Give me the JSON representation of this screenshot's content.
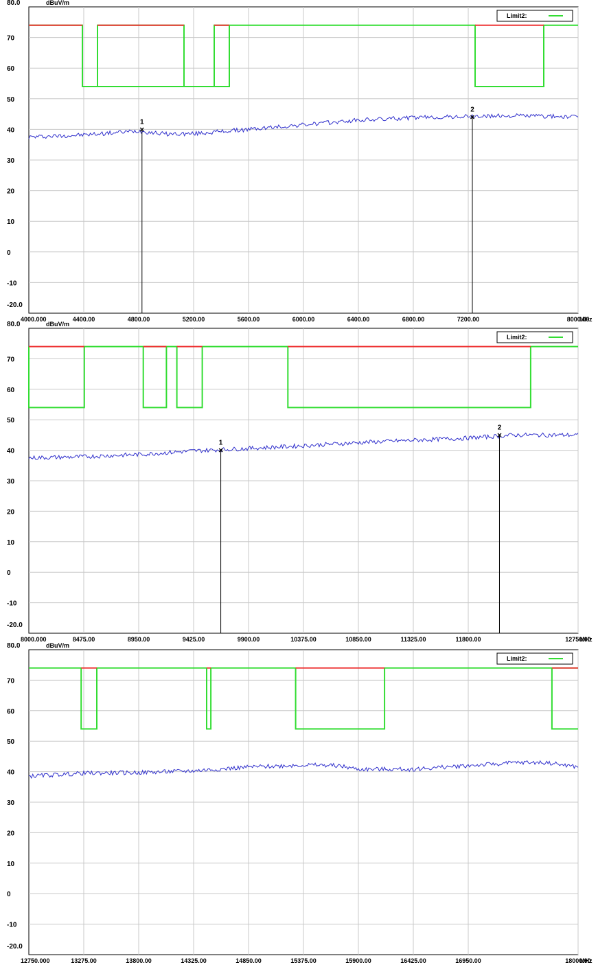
{
  "chart_data": [
    {
      "type": "line",
      "y_unit_label": "dBuV/m",
      "y_unit_key": "MHz",
      "ylim": [
        -20,
        80
      ],
      "xlim": [
        4000,
        8000
      ],
      "y_ticks": [
        "80.0",
        "70",
        "60",
        "50",
        "40",
        "30",
        "20",
        "10",
        "0",
        "-10",
        "-20.0"
      ],
      "x_ticks": [
        {
          "v": 4000,
          "label": "4000.000"
        },
        {
          "v": 4400,
          "label": "4400.00"
        },
        {
          "v": 4800,
          "label": "4800.00"
        },
        {
          "v": 5200,
          "label": "5200.00"
        },
        {
          "v": 5600,
          "label": "5600.00"
        },
        {
          "v": 6000,
          "label": "6000.00"
        },
        {
          "v": 6400,
          "label": "6400.00"
        },
        {
          "v": 6800,
          "label": "6800.00"
        },
        {
          "v": 7200,
          "label": "7200.00"
        },
        {
          "v": 8000,
          "label": "8000.00"
        }
      ],
      "x_unit": "MHz",
      "grid": true,
      "legend": {
        "label": "Limit2:",
        "position": "top-right"
      },
      "limit_line": {
        "color": "#33dd33",
        "red_color": "#ee3333",
        "points": [
          [
            4000,
            74
          ],
          [
            4390,
            74
          ],
          [
            4390,
            54
          ],
          [
            4500,
            54
          ],
          [
            4500,
            74
          ],
          [
            5130,
            74
          ],
          [
            5130,
            54
          ],
          [
            4500,
            54
          ],
          [
            5350,
            54
          ],
          [
            5350,
            74
          ],
          [
            5460,
            74
          ],
          [
            5460,
            54
          ],
          [
            5350,
            54
          ],
          [
            5460,
            54
          ],
          [
            5460,
            74
          ],
          [
            7250,
            74
          ],
          [
            7250,
            54
          ],
          [
            7750,
            54
          ],
          [
            7750,
            74
          ],
          [
            8000,
            74
          ]
        ],
        "red_segments": [
          [
            4000,
            4390
          ],
          [
            4500,
            5130
          ],
          [
            5350,
            5460
          ],
          [
            7250,
            7750
          ]
        ]
      },
      "series": [
        {
          "color": "#3030cc",
          "keypoints": [
            [
              4000,
              37.5
            ],
            [
              4400,
              38.2
            ],
            [
              4800,
              39.5
            ],
            [
              5000,
              38.5
            ],
            [
              5200,
              38.6
            ],
            [
              5600,
              40
            ],
            [
              6000,
              41.5
            ],
            [
              6400,
              43
            ],
            [
              6800,
              43.8
            ],
            [
              7200,
              44.2
            ],
            [
              7600,
              44.5
            ],
            [
              8000,
              44
            ]
          ],
          "noise": 0.7
        }
      ],
      "markers": [
        {
          "label": "1",
          "x": 4824,
          "y": 40
        },
        {
          "label": "2",
          "x": 7230,
          "y": 44
        }
      ]
    },
    {
      "type": "line",
      "y_unit_label": "dBuV/m",
      "ylim": [
        -20,
        80
      ],
      "xlim": [
        8000,
        12750
      ],
      "y_ticks": [
        "80.0",
        "70",
        "60",
        "50",
        "40",
        "30",
        "20",
        "10",
        "0",
        "-10",
        "-20.0"
      ],
      "x_ticks": [
        {
          "v": 8000,
          "label": "8000.000"
        },
        {
          "v": 8475,
          "label": "8475.00"
        },
        {
          "v": 8950,
          "label": "8950.00"
        },
        {
          "v": 9425,
          "label": "9425.00"
        },
        {
          "v": 9900,
          "label": "9900.00"
        },
        {
          "v": 10375,
          "label": "10375.00"
        },
        {
          "v": 10850,
          "label": "10850.00"
        },
        {
          "v": 11325,
          "label": "11325.00"
        },
        {
          "v": 11800,
          "label": "11800.00"
        },
        {
          "v": 12750,
          "label": "12750.00"
        }
      ],
      "x_unit": "MHz",
      "grid": true,
      "legend": {
        "label": "Limit2:",
        "position": "top-right"
      },
      "limit_line": {
        "color": "#33dd33",
        "red_color": "#ee3333",
        "points": [
          [
            8000,
            74
          ],
          [
            8000,
            54
          ],
          [
            8480,
            54
          ],
          [
            8480,
            74
          ],
          [
            8990,
            74
          ],
          [
            8990,
            54
          ],
          [
            9190,
            54
          ],
          [
            9190,
            74
          ],
          [
            8990,
            74
          ],
          [
            9280,
            74
          ],
          [
            9280,
            54
          ],
          [
            9500,
            54
          ],
          [
            9500,
            74
          ],
          [
            10240,
            74
          ],
          [
            10240,
            54
          ],
          [
            12340,
            54
          ],
          [
            12340,
            74
          ],
          [
            12750,
            74
          ]
        ],
        "red_segments": [
          [
            8000,
            8480
          ],
          [
            8990,
            9190
          ],
          [
            9280,
            9500
          ],
          [
            10240,
            12340
          ]
        ]
      },
      "series": [
        {
          "color": "#3030cc",
          "keypoints": [
            [
              8000,
              37.5
            ],
            [
              8400,
              37.8
            ],
            [
              8950,
              38.6
            ],
            [
              9425,
              39.8
            ],
            [
              9900,
              40.6
            ],
            [
              10375,
              41.5
            ],
            [
              10850,
              42.5
            ],
            [
              11325,
              43.3
            ],
            [
              11800,
              44
            ],
            [
              12200,
              45
            ],
            [
              12750,
              45
            ]
          ],
          "noise": 0.7
        }
      ],
      "markers": [
        {
          "label": "1",
          "x": 9660,
          "y": 40
        },
        {
          "label": "2",
          "x": 12070,
          "y": 45
        }
      ]
    },
    {
      "type": "line",
      "y_unit_label": "dBuV/m",
      "ylim": [
        -20,
        80
      ],
      "xlim": [
        12750,
        18000
      ],
      "y_ticks": [
        "80.0",
        "70",
        "60",
        "50",
        "40",
        "30",
        "20",
        "10",
        "0",
        "-10",
        "-20.0"
      ],
      "x_ticks": [
        {
          "v": 12750,
          "label": "12750.000"
        },
        {
          "v": 13275,
          "label": "13275.00"
        },
        {
          "v": 13800,
          "label": "13800.00"
        },
        {
          "v": 14325,
          "label": "14325.00"
        },
        {
          "v": 14850,
          "label": "14850.00"
        },
        {
          "v": 15375,
          "label": "15375.00"
        },
        {
          "v": 15900,
          "label": "15900.00"
        },
        {
          "v": 16425,
          "label": "16425.00"
        },
        {
          "v": 16950,
          "label": "16950.00"
        },
        {
          "v": 18000,
          "label": "18000.00"
        }
      ],
      "x_unit": "MHz",
      "grid": true,
      "legend": {
        "label": "Limit2:",
        "position": "top-right"
      },
      "limit_line": {
        "color": "#33dd33",
        "red_color": "#ee3333",
        "points": [
          [
            12750,
            74
          ],
          [
            13250,
            74
          ],
          [
            13250,
            54
          ],
          [
            13400,
            54
          ],
          [
            13400,
            74
          ],
          [
            14450,
            74
          ],
          [
            14450,
            54
          ],
          [
            14490,
            54
          ],
          [
            14490,
            74
          ],
          [
            15300,
            74
          ],
          [
            15300,
            54
          ],
          [
            16150,
            54
          ],
          [
            16150,
            74
          ],
          [
            17750,
            74
          ],
          [
            17750,
            54
          ],
          [
            18000,
            54
          ],
          [
            17750,
            54
          ],
          [
            17750,
            74
          ],
          [
            18000,
            74
          ]
        ],
        "red_segments": [
          [
            13250,
            13400
          ],
          [
            14450,
            14490
          ],
          [
            15300,
            16150
          ],
          [
            17750,
            18000
          ]
        ]
      },
      "series": [
        {
          "color": "#3030cc",
          "keypoints": [
            [
              12750,
              38.5
            ],
            [
              13275,
              39.5
            ],
            [
              13800,
              39.7
            ],
            [
              14325,
              40.3
            ],
            [
              14850,
              41.5
            ],
            [
              15375,
              42.2
            ],
            [
              15700,
              42
            ],
            [
              15900,
              40.8
            ],
            [
              16425,
              40.8
            ],
            [
              16950,
              42
            ],
            [
              17450,
              43
            ],
            [
              17700,
              43
            ],
            [
              18000,
              41.5
            ]
          ],
          "noise": 0.7
        }
      ],
      "markers": []
    }
  ]
}
